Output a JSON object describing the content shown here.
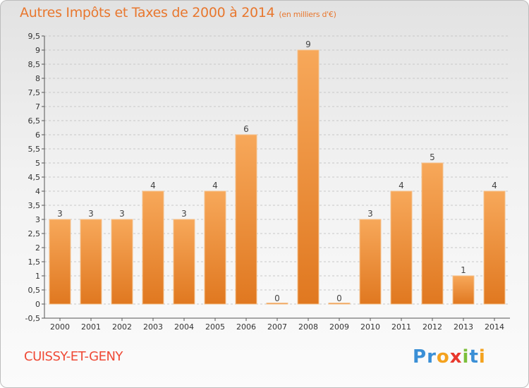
{
  "chart_data": {
    "type": "bar",
    "title": "Autres Impôts et Taxes de 2000 à 2014",
    "subtitle": "(en milliers d'€)",
    "categories": [
      "2000",
      "2001",
      "2002",
      "2003",
      "2004",
      "2005",
      "2006",
      "2007",
      "2008",
      "2009",
      "2010",
      "2011",
      "2012",
      "2013",
      "2014"
    ],
    "values": [
      3,
      3,
      3,
      4,
      3,
      4,
      6,
      0,
      9,
      0,
      3,
      4,
      5,
      1,
      4
    ],
    "data_labels": [
      "3",
      "3",
      "3",
      "4",
      "3",
      "4",
      "6",
      "0",
      "9",
      "0",
      "3",
      "4",
      "5",
      "1",
      "4"
    ],
    "ylim": [
      -0.5,
      9.5
    ],
    "yticks": [
      -0.5,
      0,
      0.5,
      1,
      1.5,
      2,
      2.5,
      3,
      3.5,
      4,
      4.5,
      5,
      5.5,
      6,
      6.5,
      7,
      7.5,
      8,
      8.5,
      9,
      9.5
    ],
    "ytick_labels": [
      "-0,5",
      "0",
      "0,5",
      "1",
      "1,5",
      "2",
      "2,5",
      "3",
      "3,5",
      "4",
      "4,5",
      "5",
      "5,5",
      "6",
      "6,5",
      "7",
      "7,5",
      "8",
      "8,5",
      "9",
      "9,5"
    ],
    "xlabel": "",
    "ylabel": "",
    "grid": true,
    "bar_color_top": "#f7a85a",
    "bar_color_bottom": "#e07820"
  },
  "footer": {
    "place": "CUISSY-ET-GENY",
    "logo": {
      "letters": [
        "P",
        "r",
        "o",
        "x",
        "i",
        "t",
        "i"
      ],
      "colors": [
        "#3a8fd6",
        "#3a8fd6",
        "#f4a21e",
        "#e8382d",
        "#7cbf3a",
        "#3a8fd6",
        "#f4a21e"
      ]
    }
  }
}
